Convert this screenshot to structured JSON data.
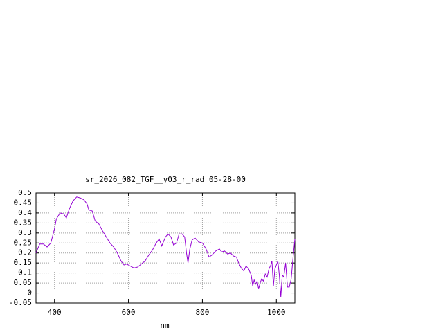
{
  "chart_data": {
    "type": "line",
    "title": "sr_2026_082_TGF__y03_r_rad 05-28-00",
    "x_label": "nm",
    "color": "#9400d3",
    "grid": true,
    "xlim": [
      350,
      1050
    ],
    "xticks": [
      400,
      600,
      800,
      1000
    ],
    "ylim": [
      -0.05,
      0.5
    ],
    "yticks": [
      -0.05,
      0,
      0.05,
      0.1,
      0.15,
      0.2,
      0.25,
      0.3,
      0.35,
      0.4,
      0.45,
      0.5
    ],
    "x": [
      350,
      360,
      370,
      380,
      390,
      400,
      405,
      415,
      425,
      432,
      440,
      450,
      460,
      470,
      480,
      488,
      493,
      502,
      510,
      520,
      530,
      540,
      550,
      560,
      570,
      580,
      588,
      595,
      605,
      615,
      625,
      635,
      645,
      655,
      665,
      675,
      683,
      690,
      700,
      707,
      715,
      722,
      730,
      737,
      745,
      752,
      757,
      761,
      766,
      772,
      780,
      790,
      800,
      810,
      818,
      826,
      836,
      846,
      852,
      860,
      868,
      876,
      884,
      892,
      898,
      905,
      912,
      918,
      925,
      932,
      936,
      940,
      944,
      948,
      952,
      956,
      960,
      965,
      970,
      975,
      980,
      985,
      988,
      992,
      996,
      1000,
      1004,
      1008,
      1012,
      1016,
      1020,
      1025,
      1030,
      1035,
      1040,
      1045,
      1050
    ],
    "values": [
      0.2,
      0.245,
      0.245,
      0.23,
      0.25,
      0.32,
      0.37,
      0.4,
      0.395,
      0.375,
      0.42,
      0.46,
      0.48,
      0.475,
      0.465,
      0.445,
      0.415,
      0.41,
      0.36,
      0.345,
      0.31,
      0.28,
      0.25,
      0.23,
      0.2,
      0.16,
      0.14,
      0.145,
      0.135,
      0.125,
      0.13,
      0.145,
      0.16,
      0.19,
      0.215,
      0.25,
      0.27,
      0.235,
      0.28,
      0.295,
      0.28,
      0.24,
      0.25,
      0.295,
      0.295,
      0.28,
      0.2,
      0.15,
      0.22,
      0.265,
      0.275,
      0.255,
      0.25,
      0.22,
      0.18,
      0.19,
      0.21,
      0.22,
      0.205,
      0.21,
      0.195,
      0.2,
      0.185,
      0.18,
      0.15,
      0.125,
      0.11,
      0.135,
      0.12,
      0.09,
      0.035,
      0.065,
      0.045,
      0.06,
      0.02,
      0.05,
      0.07,
      0.06,
      0.095,
      0.08,
      0.12,
      0.14,
      0.16,
      0.035,
      0.12,
      0.14,
      0.16,
      0.09,
      -0.02,
      0.09,
      0.08,
      0.15,
      0.03,
      0.03,
      0.07,
      0.175,
      0.27
    ]
  }
}
